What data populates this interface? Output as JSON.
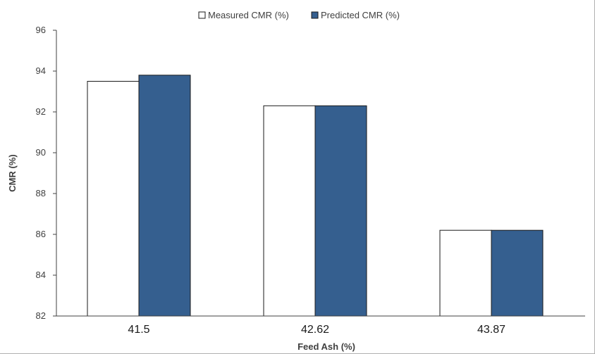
{
  "chart_data": {
    "type": "bar",
    "categories": [
      "41.5",
      "42.62",
      "43.87"
    ],
    "series": [
      {
        "name": "Measured CMR (%)",
        "values": [
          93.5,
          92.3,
          86.2
        ],
        "color": "#ffffff"
      },
      {
        "name": "Predicted CMR (%)",
        "values": [
          93.8,
          92.3,
          86.2
        ],
        "color": "#355f8f"
      }
    ],
    "title": "",
    "xlabel": "Feed Ash (%)",
    "ylabel": "CMR (%)",
    "ylim": [
      82,
      96
    ],
    "yticks": [
      "82",
      "84",
      "86",
      "88",
      "90",
      "92",
      "94",
      "96"
    ],
    "grid": false,
    "legend_position": "top-center"
  }
}
